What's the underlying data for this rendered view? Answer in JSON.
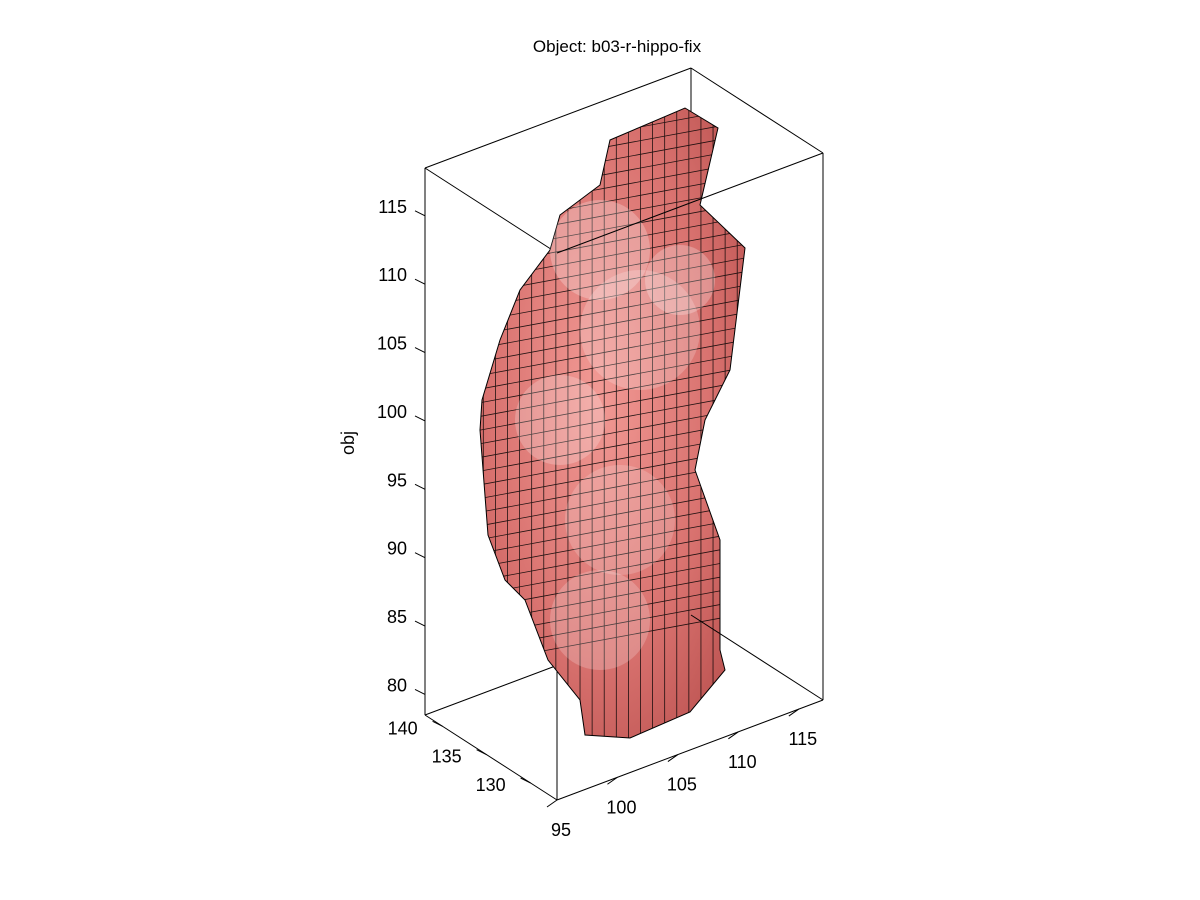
{
  "chart_data": {
    "type": "3d-voxel",
    "title": "Object: b03-r-hippo-fix",
    "xlabel": "",
    "ylabel": "",
    "zlabel": "obj",
    "xlim": [
      95,
      117
    ],
    "ylim": [
      127,
      142
    ],
    "zlim": [
      78.5,
      118.5
    ],
    "x_ticks": [
      "95",
      "100",
      "105",
      "110",
      "115"
    ],
    "y_ticks": [
      "130",
      "135",
      "140"
    ],
    "z_ticks": [
      "80",
      "85",
      "90",
      "95",
      "100",
      "105",
      "110",
      "115"
    ],
    "surface_color": "#e07a78",
    "edge_color": "#000000",
    "grid": false
  }
}
